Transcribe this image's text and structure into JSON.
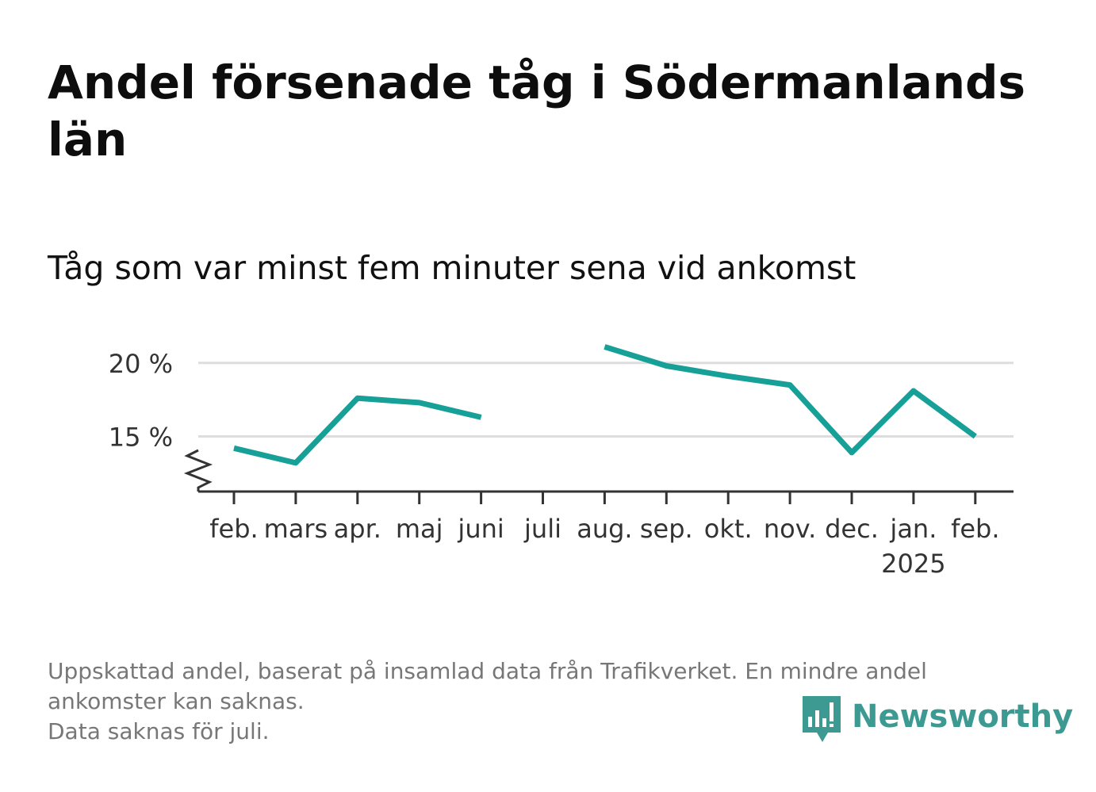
{
  "title": "Andel försenade tåg i Södermanlands län",
  "subtitle": "Tåg som var minst fem minuter sena vid ankomst",
  "footnote": {
    "line1": "Uppskattad andel, baserat på insamlad data från Trafikverket. En mindre andel",
    "line2": "ankomster kan saknas.",
    "line3": "Data saknas för juli."
  },
  "brand": {
    "name": "Newsworthy",
    "logo_icon": "newsworthy-chart-bubble-icon"
  },
  "colors": {
    "line": "#16a097",
    "grid": "#dddddd",
    "axis": "#333333",
    "brand": "#3d9a92"
  },
  "chart_data": {
    "type": "line",
    "title": "Andel försenade tåg i Södermanlands län",
    "subtitle": "Tåg som var minst fem minuter sena vid ankomst",
    "categories": [
      "feb.",
      "mars",
      "apr.",
      "maj",
      "juni",
      "juli",
      "aug.",
      "sep.",
      "okt.",
      "nov.",
      "dec.",
      "jan.",
      "feb."
    ],
    "year_label": {
      "category_index": 11,
      "text": "2025"
    },
    "series": [
      {
        "values": [
          14.2,
          13.2,
          17.6,
          17.3,
          16.3,
          null,
          21.1,
          19.8,
          19.1,
          18.5,
          13.9,
          18.1,
          15.0
        ]
      }
    ],
    "y_ticks": [
      15,
      20
    ],
    "y_tick_labels": [
      "15 %",
      "20 %"
    ],
    "ylim": [
      11.25,
      21.5
    ],
    "axis_break": true,
    "grid": true,
    "legend": "none"
  }
}
